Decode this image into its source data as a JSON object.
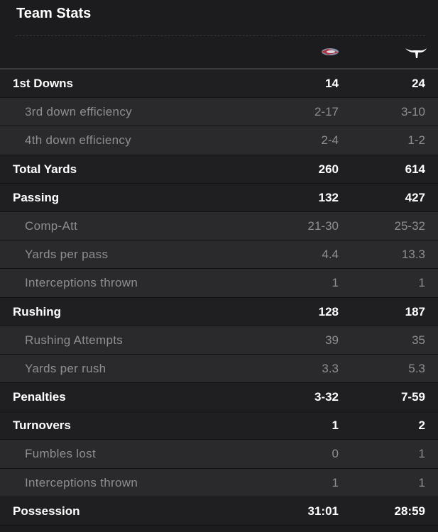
{
  "header": {
    "title": "Team Stats"
  },
  "stats": [
    {
      "label": "1st Downs",
      "values": [
        "14",
        "24"
      ],
      "details": [
        {
          "label": "3rd down efficiency",
          "values": [
            "2-17",
            "3-10"
          ]
        },
        {
          "label": "4th down efficiency",
          "values": [
            "2-4",
            "1-2"
          ]
        }
      ]
    },
    {
      "label": "Total Yards",
      "values": [
        "260",
        "614"
      ],
      "details": []
    },
    {
      "label": "Passing",
      "values": [
        "132",
        "427"
      ],
      "details": [
        {
          "label": "Comp-Att",
          "values": [
            "21-30",
            "25-32"
          ]
        },
        {
          "label": "Yards per pass",
          "values": [
            "4.4",
            "13.3"
          ]
        },
        {
          "label": "Interceptions thrown",
          "values": [
            "1",
            "1"
          ]
        }
      ]
    },
    {
      "label": "Rushing",
      "values": [
        "128",
        "187"
      ],
      "details": [
        {
          "label": "Rushing Attempts",
          "values": [
            "39",
            "35"
          ]
        },
        {
          "label": "Yards per rush",
          "values": [
            "3.3",
            "5.3"
          ]
        }
      ]
    },
    {
      "label": "Penalties",
      "values": [
        "3-32",
        "7-59"
      ],
      "details": []
    },
    {
      "label": "Turnovers",
      "values": [
        "1",
        "2"
      ],
      "details": [
        {
          "label": "Fumbles lost",
          "values": [
            "0",
            "1"
          ]
        },
        {
          "label": "Interceptions thrown",
          "values": [
            "1",
            "1"
          ]
        }
      ]
    },
    {
      "label": "Possession",
      "values": [
        "31:01",
        "28:59"
      ],
      "details": []
    }
  ]
}
